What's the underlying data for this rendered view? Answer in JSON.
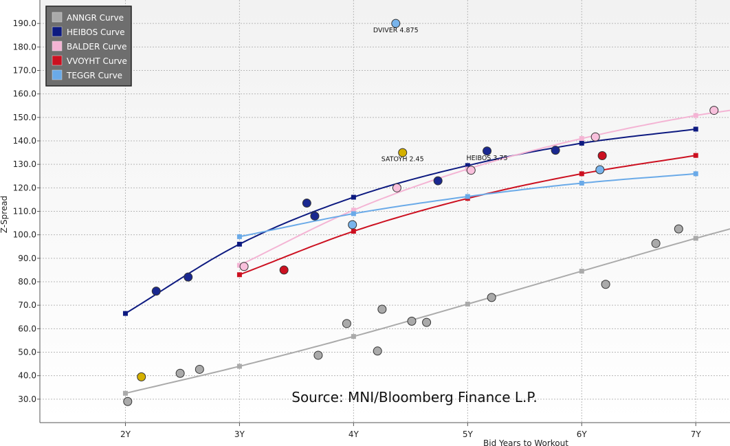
{
  "chart_data": {
    "type": "scatter",
    "title": "",
    "xlabel": "Bid Years to Workout",
    "ylabel": "Z-Spread",
    "xlim": [
      1.25,
      7.3
    ],
    "ylim": [
      20,
      200
    ],
    "x_ticks": [
      2,
      3,
      4,
      5,
      6,
      7
    ],
    "x_tick_labels": [
      "2Y",
      "3Y",
      "4Y",
      "5Y",
      "6Y",
      "7Y"
    ],
    "y_ticks": [
      30,
      40,
      50,
      60,
      70,
      80,
      90,
      100,
      110,
      120,
      130,
      140,
      150,
      160,
      170,
      180,
      190
    ],
    "y_tick_labels": [
      "30.0",
      "40.0",
      "50.0",
      "60.0",
      "70.0",
      "80.0",
      "90.0",
      "100.0",
      "110.0",
      "120.0",
      "130.0",
      "140.0",
      "150.0",
      "160.0",
      "170.0",
      "180.0",
      "190.0"
    ],
    "grid": true,
    "legend_position": "top-left",
    "series": [
      {
        "name": "ANNGR Curve",
        "color": "#aaaaaa",
        "point_color": "#aaaaaa",
        "curve_x": [
          2,
          3,
          4,
          5,
          6,
          7,
          7.3
        ],
        "curve_y": [
          32.5,
          44,
          56.7,
          70.5,
          84.5,
          98.5,
          102.5
        ],
        "points": [
          [
            2.02,
            29
          ],
          [
            2.48,
            41
          ],
          [
            2.65,
            42.7
          ],
          [
            3.69,
            48.7
          ],
          [
            3.94,
            62.2
          ],
          [
            4.21,
            50.5
          ],
          [
            4.25,
            68.3
          ],
          [
            4.51,
            63.2
          ],
          [
            4.64,
            62.7
          ],
          [
            5.21,
            73.3
          ],
          [
            6.21,
            78.9
          ],
          [
            6.65,
            96.3
          ],
          [
            6.85,
            102.5
          ]
        ]
      },
      {
        "name": "HEIBOS Curve",
        "color": "#0d1a80",
        "point_color": "#1a2890",
        "curve_x": [
          2,
          3,
          4,
          5,
          6,
          7
        ],
        "curve_y": [
          66.5,
          96,
          116,
          129.5,
          139,
          145
        ],
        "points": [
          [
            2.27,
            76
          ],
          [
            2.55,
            82
          ],
          [
            3.59,
            113.5
          ],
          [
            3.66,
            108
          ],
          [
            4.74,
            123
          ],
          [
            5.17,
            135.7
          ],
          [
            5.77,
            136
          ]
        ]
      },
      {
        "name": "BALDER Curve",
        "color": "#f4b4d4",
        "point_color": "#f8c0dc",
        "curve_x": [
          3,
          4,
          5,
          6,
          7,
          7.3
        ],
        "curve_y": [
          87,
          110.5,
          128,
          141,
          150.8,
          153
        ],
        "points": [
          [
            3.04,
            86.5
          ],
          [
            4.38,
            120
          ],
          [
            5.03,
            127.5
          ],
          [
            6.12,
            141.7
          ],
          [
            7.16,
            153
          ]
        ]
      },
      {
        "name": "VVOYHT Curve",
        "color": "#cc1020",
        "point_color": "#cc1020",
        "curve_x": [
          3,
          4,
          5,
          6,
          7
        ],
        "curve_y": [
          83,
          101.5,
          115.5,
          126,
          133.8
        ],
        "points": [
          [
            3.39,
            85
          ],
          [
            6.18,
            133.7
          ]
        ]
      },
      {
        "name": "TEGGR Curve",
        "color": "#6aaae8",
        "point_color": "#78b4ec",
        "curve_x": [
          3,
          4,
          5,
          6,
          7
        ],
        "curve_y": [
          99.2,
          109,
          116.3,
          122,
          126
        ],
        "points": [
          [
            3.99,
            104.3
          ],
          [
            4.37,
            190
          ],
          [
            6.16,
            127.7
          ]
        ]
      }
    ],
    "other_points": [
      {
        "x": 2.14,
        "y": 39.5,
        "color": "#d4b000"
      },
      {
        "x": 4.43,
        "y": 135,
        "color": "#d4b000"
      }
    ],
    "annotations": [
      {
        "text": "DVIVER 4.875",
        "x": 4.37,
        "y": 186.2
      },
      {
        "text": "SATOYH 2.45",
        "x": 4.43,
        "y": 131.3
      },
      {
        "text": "HEIBOS 3.75",
        "x": 5.17,
        "y": 131.8
      }
    ],
    "source": "Source: MNI/Bloomberg Finance L.P."
  }
}
